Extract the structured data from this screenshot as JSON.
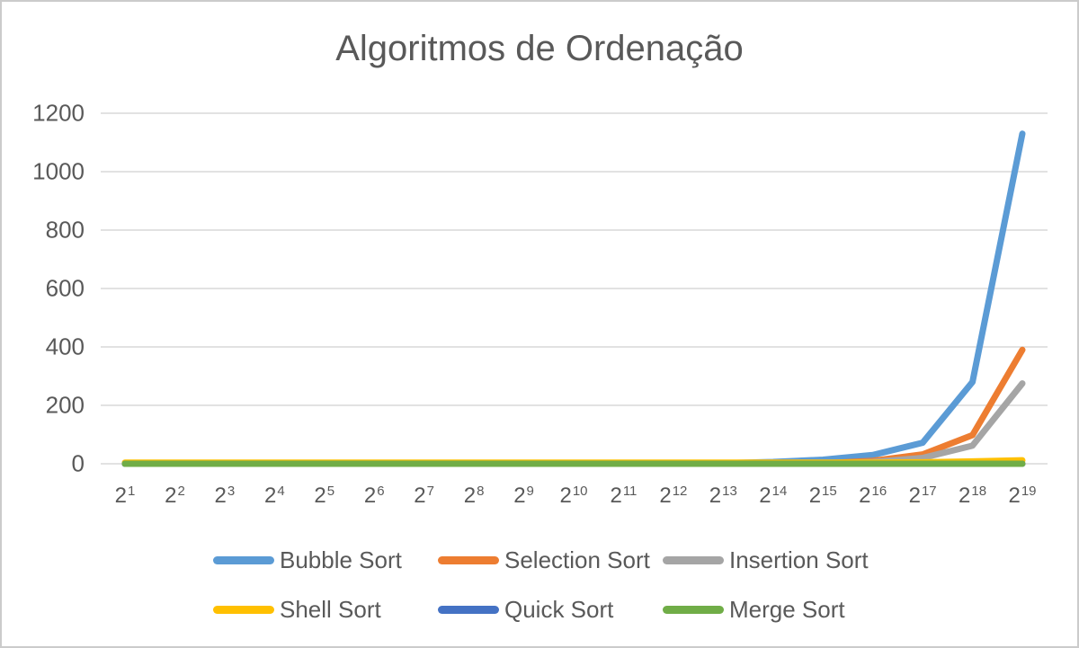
{
  "title": "Algoritmos de Ordenação",
  "text_color": "#595959",
  "gridline_color": "#d9d9d9",
  "frame_border_color": "#cbcbcb",
  "chart_data": {
    "type": "line",
    "title": "Algoritmos de Ordenação",
    "xlabel": "",
    "ylabel": "",
    "x_tick_base": "2",
    "x_exponents": [
      1,
      2,
      3,
      4,
      5,
      6,
      7,
      8,
      9,
      10,
      11,
      12,
      13,
      14,
      15,
      16,
      17,
      18,
      19
    ],
    "categories": [
      "2^1",
      "2^2",
      "2^3",
      "2^4",
      "2^5",
      "2^6",
      "2^7",
      "2^8",
      "2^9",
      "2^10",
      "2^11",
      "2^12",
      "2^13",
      "2^14",
      "2^15",
      "2^16",
      "2^17",
      "2^18",
      "2^19"
    ],
    "y_ticks": [
      0,
      200,
      400,
      600,
      800,
      1000,
      1200
    ],
    "ylim": [
      0,
      1200
    ],
    "grid": "horizontal",
    "legend_position": "bottom",
    "series": [
      {
        "name": "Bubble Sort",
        "color": "#5B9BD5",
        "values": [
          0,
          0,
          0,
          0,
          0,
          0,
          0,
          0,
          0,
          0,
          0,
          1,
          2,
          6,
          14,
          30,
          72,
          280,
          1130
        ]
      },
      {
        "name": "Selection Sort",
        "color": "#ED7D31",
        "values": [
          0,
          0,
          0,
          0,
          0,
          0,
          0,
          0,
          0,
          0,
          0,
          0,
          0,
          0,
          1,
          10,
          32,
          98,
          390
        ]
      },
      {
        "name": "Insertion Sort",
        "color": "#A5A5A5",
        "values": [
          0,
          0,
          0,
          0,
          0,
          0,
          0,
          0,
          0,
          0,
          0,
          0,
          0,
          0,
          0,
          6,
          20,
          62,
          275
        ]
      },
      {
        "name": "Shell Sort",
        "color": "#FFC000",
        "values": [
          4,
          4,
          4,
          4,
          4,
          4,
          4,
          4,
          4,
          4,
          4,
          4,
          4,
          4,
          4,
          4,
          5,
          8,
          12
        ]
      },
      {
        "name": "Quick Sort",
        "color": "#4472C4",
        "values": [
          0,
          0,
          0,
          0,
          0,
          0,
          0,
          0,
          0,
          0,
          0,
          0,
          0,
          0,
          0,
          0,
          0,
          0,
          0
        ]
      },
      {
        "name": "Merge Sort",
        "color": "#70AD47",
        "values": [
          0,
          0,
          0,
          0,
          0,
          0,
          0,
          0,
          0,
          0,
          0,
          0,
          0,
          0,
          0,
          0,
          0,
          0,
          0
        ]
      }
    ],
    "legend_rows": [
      [
        "Bubble Sort",
        "Selection Sort",
        "Insertion Sort"
      ],
      [
        "Shell Sort",
        "Quick Sort",
        "Merge Sort"
      ]
    ]
  }
}
